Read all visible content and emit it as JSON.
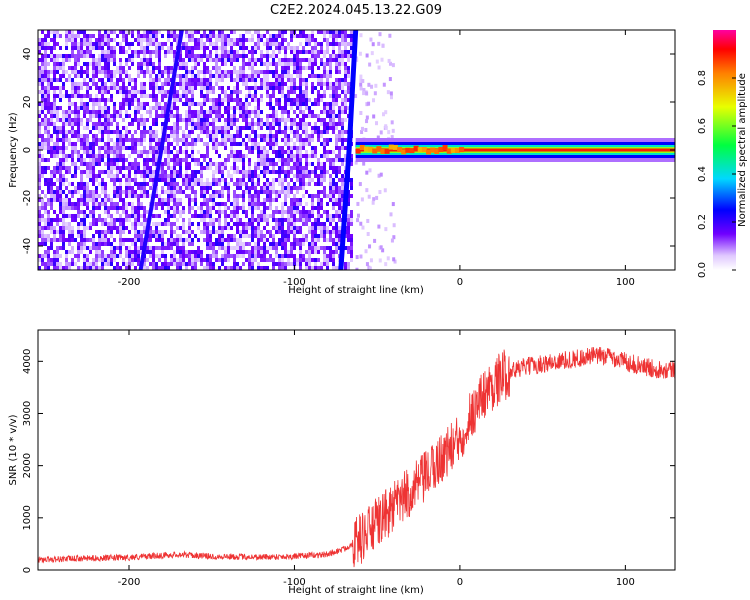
{
  "title": "C2E2.2024.045.13.22.G09",
  "chart_data": [
    {
      "type": "heatmap",
      "xlabel": "Height of straight line (km)",
      "ylabel": "Frequency (Hz)",
      "xlim": [
        -255,
        130
      ],
      "ylim": [
        -50,
        50
      ],
      "xticks": [
        -200,
        -100,
        0,
        100
      ],
      "yticks": [
        -40,
        -20,
        0,
        20,
        40
      ],
      "xtick_labels": [
        "-200",
        "-100",
        "0",
        "100"
      ],
      "ytick_labels": [
        "-40",
        "-20",
        "0",
        "20",
        "40"
      ],
      "colorbar": {
        "label": "Normalized spectral amplitude",
        "range": [
          0,
          1
        ],
        "ticks": [
          0,
          0.2,
          0.4,
          0.6,
          0.8
        ],
        "tick_labels": [
          "0.0",
          "0.2",
          "0.4",
          "0.6",
          "0.8"
        ],
        "colormap": "rainbow"
      },
      "features": {
        "noise_region_x": [
          -255,
          -65
        ],
        "carrier_onset_x": -63,
        "carrier_freq_hz": 0,
        "carrier_amplitude": 0.9,
        "curved_trace_points": [
          [
            -72,
            -50
          ],
          [
            -70,
            -30
          ],
          [
            -67,
            0
          ],
          [
            -65,
            25
          ],
          [
            -63,
            50
          ]
        ],
        "diagonal_trace_points": [
          [
            -193,
            -50
          ],
          [
            -168,
            50
          ]
        ]
      }
    },
    {
      "type": "line",
      "xlabel": "Height of straight line (km)",
      "ylabel": "SNR (10 * v/v)",
      "xlim": [
        -255,
        130
      ],
      "ylim": [
        0,
        4600
      ],
      "xticks": [
        -200,
        -100,
        0,
        100
      ],
      "yticks": [
        0,
        1000,
        2000,
        3000,
        4000
      ],
      "xtick_labels": [
        "-200",
        "-100",
        "0",
        "100"
      ],
      "ytick_labels": [
        "0",
        "1000",
        "2000",
        "3000",
        "4000"
      ],
      "color": "#ee3333",
      "series": [
        {
          "x": [
            -255,
            -230,
            -200,
            -170,
            -150,
            -120,
            -100,
            -80,
            -70,
            -60,
            -50,
            -40,
            -30,
            -20,
            -10,
            0,
            5,
            10,
            15,
            20,
            25,
            30,
            40,
            50,
            60,
            70,
            80,
            90,
            100,
            110,
            120,
            130
          ],
          "values": [
            200,
            220,
            240,
            300,
            260,
            250,
            260,
            300,
            400,
            600,
            900,
            1200,
            1500,
            1800,
            2200,
            2500,
            2900,
            3150,
            3400,
            3550,
            3700,
            3800,
            3900,
            3950,
            4000,
            4050,
            4100,
            4100,
            4000,
            3900,
            3850,
            3850
          ]
        }
      ]
    }
  ]
}
